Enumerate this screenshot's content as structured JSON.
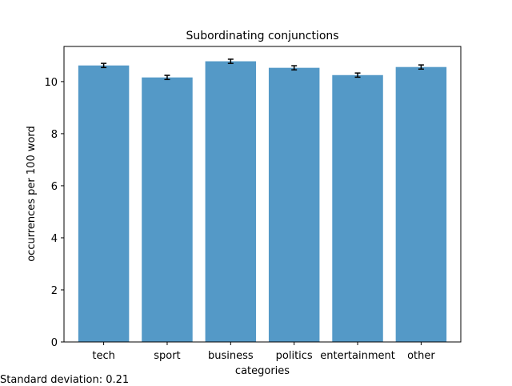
{
  "chart_data": {
    "type": "bar",
    "title": "Subordinating conjunctions",
    "xlabel": "categories",
    "ylabel": "occurrences per 100 word",
    "categories": [
      "tech",
      "sport",
      "business",
      "politics",
      "entertainment",
      "other"
    ],
    "values": [
      10.62,
      10.16,
      10.78,
      10.53,
      10.25,
      10.56
    ],
    "errors": [
      0.08,
      0.08,
      0.08,
      0.08,
      0.08,
      0.08
    ],
    "ylim": [
      0,
      11.35
    ],
    "yticks": [
      0,
      2,
      4,
      6,
      8,
      10
    ],
    "bar_color": "#5499c7",
    "grid": false,
    "legend": "none"
  },
  "footnote": "Standard deviation: 0.21"
}
